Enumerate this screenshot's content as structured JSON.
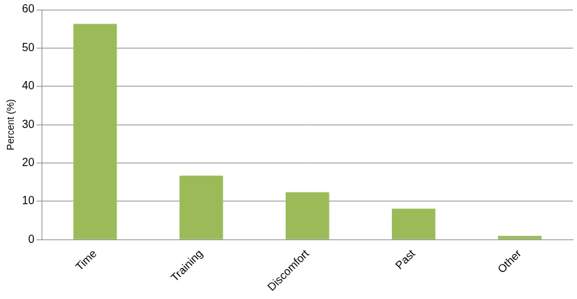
{
  "chart_data": {
    "type": "bar",
    "y_label": "Percent (%)",
    "categories": [
      "Time",
      "Training",
      "Discomfort",
      "Past",
      "Other"
    ],
    "values": [
      56.3,
      16.7,
      12.4,
      8.1,
      1.0
    ],
    "color": "#9bbb59",
    "ylim": [
      0,
      60
    ],
    "yticks": [
      0,
      10,
      20,
      30,
      40,
      50,
      60
    ],
    "grid": true
  }
}
